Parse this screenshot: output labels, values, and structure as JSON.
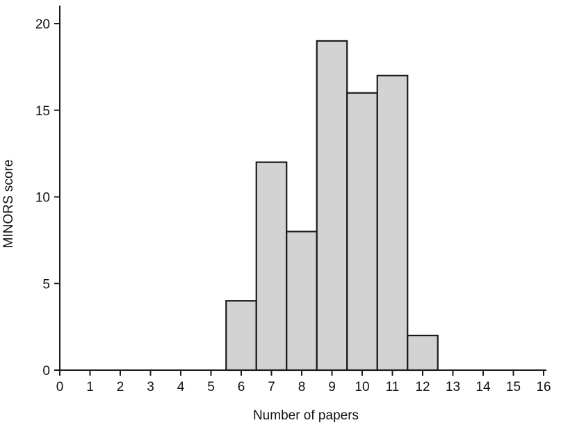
{
  "chart_data": {
    "type": "bar",
    "title": "",
    "xlabel": "Number of papers",
    "ylabel": "MINORS score",
    "xlim": [
      0,
      16
    ],
    "ylim": [
      0,
      20
    ],
    "x_ticks": [
      "0",
      "1",
      "2",
      "3",
      "4",
      "5",
      "6",
      "7",
      "8",
      "9",
      "10",
      "11",
      "12",
      "13",
      "14",
      "15",
      "16"
    ],
    "y_ticks": [
      "0",
      "5",
      "10",
      "15",
      "20"
    ],
    "bins": [
      6,
      7,
      8,
      9,
      10,
      11,
      12
    ],
    "values": [
      4,
      12,
      8,
      19,
      16,
      17,
      2
    ],
    "bar_color": "#d3d3d3",
    "edge_color": "#1a1a1a",
    "grid": false
  }
}
